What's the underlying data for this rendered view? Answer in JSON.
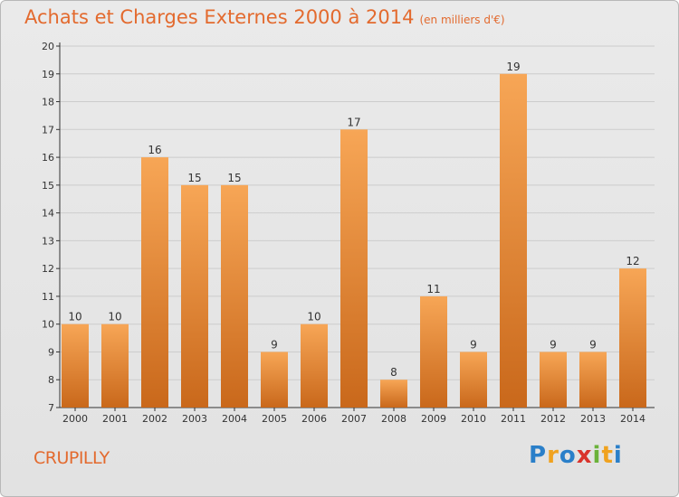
{
  "title": "Achats et Charges Externes 2000 à 2014",
  "unit_note": "(en milliers d'€)",
  "commune": "CRUPILLY",
  "logo": {
    "text": "Proxiti",
    "letters": [
      {
        "ch": "P",
        "color": "#2a7fc9"
      },
      {
        "ch": "r",
        "color": "#f0a21f"
      },
      {
        "ch": "o",
        "color": "#2a7fc9"
      },
      {
        "ch": "x",
        "color": "#d9332b"
      },
      {
        "ch": "i",
        "color": "#6bb23a"
      },
      {
        "ch": "t",
        "color": "#f0a21f"
      },
      {
        "ch": "i",
        "color": "#2a7fc9"
      }
    ]
  },
  "colors": {
    "bar_light": "#f7a656",
    "bar_dark": "#c9681b",
    "accent": "#e36a2e",
    "axis": "#333333",
    "grid": "#cccccc"
  },
  "chart_data": {
    "type": "bar",
    "title": "Achats et Charges Externes 2000 à 2014",
    "categories": [
      "2000",
      "2001",
      "2002",
      "2003",
      "2004",
      "2005",
      "2006",
      "2007",
      "2008",
      "2009",
      "2010",
      "2011",
      "2012",
      "2013",
      "2014"
    ],
    "values": [
      10,
      10,
      16,
      15,
      15,
      9,
      10,
      17,
      8,
      11,
      9,
      19,
      9,
      9,
      12
    ],
    "data_labels": [
      "10",
      "10",
      "16",
      "15",
      "15",
      "9",
      "10",
      "17",
      "8",
      "11",
      "9",
      "19",
      "9",
      "9",
      "12"
    ],
    "ylim": [
      7,
      20
    ],
    "yticks": [
      7,
      8,
      9,
      10,
      11,
      12,
      13,
      14,
      15,
      16,
      17,
      18,
      19,
      20
    ],
    "grid": true,
    "xlabel": "",
    "ylabel": ""
  }
}
